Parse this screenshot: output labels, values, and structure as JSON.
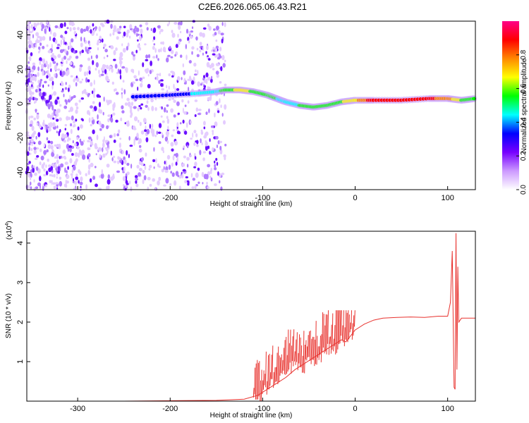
{
  "title": "C2E6.2026.065.06.43.R21",
  "chart_data": [
    {
      "type": "heatmap",
      "xlabel": "Height of straight line (km)",
      "ylabel": "Frequency (Hz)",
      "xlim": [
        -355,
        130
      ],
      "ylim": [
        -50,
        48
      ],
      "x_ticks": [
        -300,
        -200,
        -100,
        0,
        100
      ],
      "y_ticks": [
        -40,
        -20,
        0,
        20,
        40
      ],
      "x_tick_labels": [
        "-300",
        "-200",
        "-100",
        "0",
        "100"
      ],
      "y_tick_labels": [
        "-40",
        "-20",
        "0",
        "20",
        "40"
      ],
      "colorbar": {
        "label": "Normalized spectral amplitude",
        "range": [
          0,
          1
        ],
        "ticks": [
          0.0,
          0.2,
          0.4,
          0.6,
          0.8
        ],
        "tick_labels": [
          "0.0",
          "0.2",
          "0.4",
          "0.6",
          "0.8"
        ],
        "colors": [
          "#ffffff",
          "#cc99ff",
          "#7700ff",
          "#0000ff",
          "#00ffff",
          "#00ff00",
          "#ffff00",
          "#ff8800",
          "#ff0000",
          "#ff0088"
        ]
      },
      "ridge": [
        {
          "x": -240,
          "y": 4,
          "v": 0.35
        },
        {
          "x": -200,
          "y": 5,
          "v": 0.35
        },
        {
          "x": -170,
          "y": 6,
          "v": 0.4
        },
        {
          "x": -150,
          "y": 7,
          "v": 0.45
        },
        {
          "x": -140,
          "y": 8,
          "v": 0.55
        },
        {
          "x": -125,
          "y": 8,
          "v": 0.65
        },
        {
          "x": -110,
          "y": 7,
          "v": 0.6
        },
        {
          "x": -95,
          "y": 5,
          "v": 0.55
        },
        {
          "x": -85,
          "y": 3,
          "v": 0.5
        },
        {
          "x": -75,
          "y": 1,
          "v": 0.45
        },
        {
          "x": -60,
          "y": -1,
          "v": 0.5
        },
        {
          "x": -45,
          "y": -2,
          "v": 0.5
        },
        {
          "x": -30,
          "y": -1,
          "v": 0.55
        },
        {
          "x": -15,
          "y": 1,
          "v": 0.6
        },
        {
          "x": 0,
          "y": 2,
          "v": 0.7
        },
        {
          "x": 20,
          "y": 2,
          "v": 0.9
        },
        {
          "x": 50,
          "y": 2,
          "v": 0.9
        },
        {
          "x": 80,
          "y": 3,
          "v": 0.85
        },
        {
          "x": 100,
          "y": 3,
          "v": 0.8
        },
        {
          "x": 115,
          "y": 2,
          "v": 0.6
        },
        {
          "x": 130,
          "y": 3,
          "v": 0.55
        }
      ]
    },
    {
      "type": "line",
      "xlabel": "Height of straight line (km)",
      "ylabel": "SNR (10 * v/v)",
      "y_multiplier": "(x10",
      "y_multiplier_exp": "4",
      "xlim": [
        -355,
        130
      ],
      "ylim": [
        0,
        4.3
      ],
      "x_ticks": [
        -300,
        -200,
        -100,
        0,
        100
      ],
      "y_ticks": [
        1,
        2,
        3,
        4
      ],
      "x_tick_labels": [
        "-300",
        "-200",
        "-100",
        "0",
        "100"
      ],
      "y_tick_labels": [
        "1",
        "2",
        "3",
        "4"
      ],
      "series": [
        {
          "color": "#e8322e",
          "x": [
            -355,
            -300,
            -250,
            -200,
            -150,
            -120,
            -105,
            -95,
            -85,
            -75,
            -65,
            -55,
            -45,
            -35,
            -25,
            -15,
            -10,
            -5,
            0,
            10,
            20,
            30,
            45,
            60,
            75,
            90,
            100,
            103,
            105,
            107,
            108,
            109,
            110,
            111,
            112,
            115,
            120,
            130
          ],
          "y": [
            0.0,
            0.0,
            0.0,
            0.01,
            0.02,
            0.05,
            0.15,
            0.3,
            0.45,
            0.6,
            0.8,
            0.95,
            1.1,
            1.25,
            1.4,
            1.55,
            1.5,
            1.65,
            1.8,
            1.95,
            2.05,
            2.1,
            2.12,
            2.13,
            2.12,
            2.15,
            2.15,
            2.5,
            3.8,
            0.35,
            0.3,
            4.25,
            0.8,
            3.4,
            2.0,
            2.1,
            2.1,
            2.1
          ]
        }
      ]
    }
  ]
}
